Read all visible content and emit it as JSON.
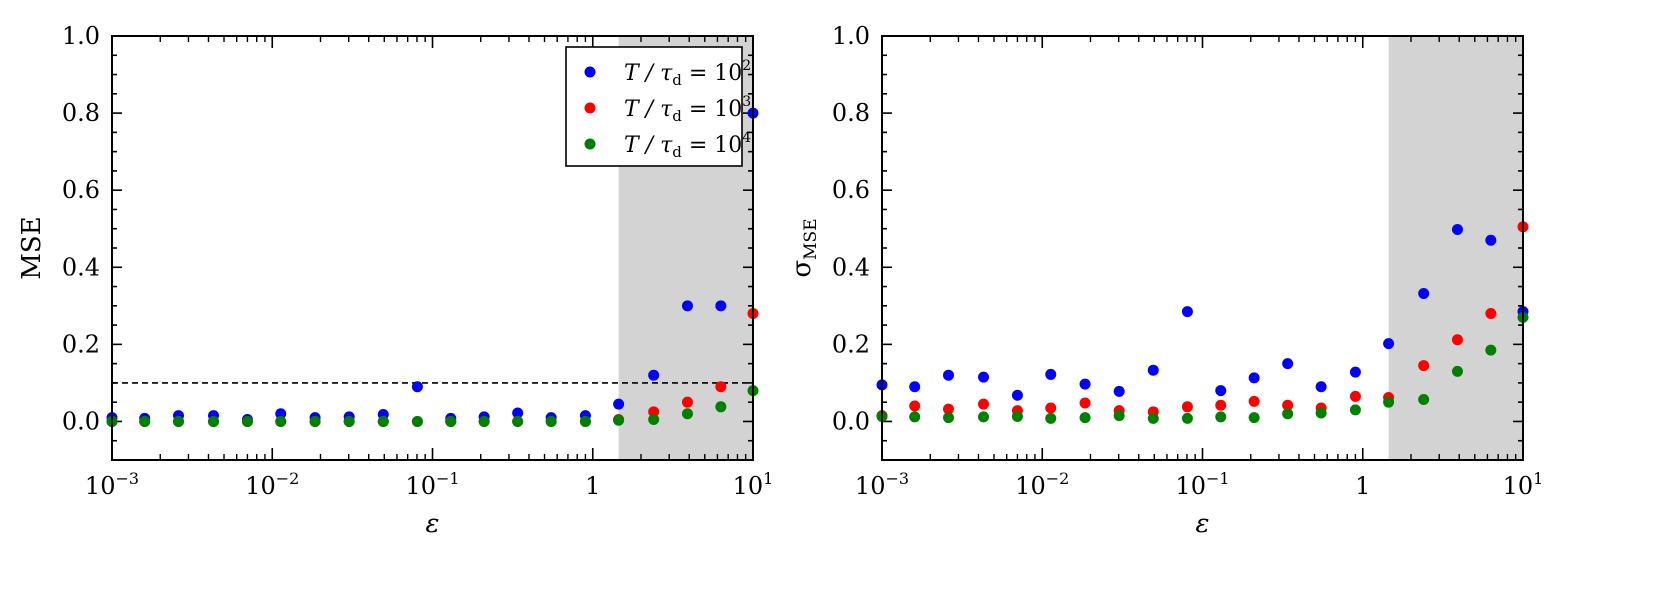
{
  "chart_data": [
    {
      "type": "scatter",
      "panel": "left",
      "xscale": "log",
      "xlim": [
        0.001,
        10
      ],
      "ylim": [
        -0.1,
        1.0
      ],
      "xlabel": "ε",
      "ylabel": "MSE",
      "yticks": [
        "0.0",
        "0.2",
        "0.4",
        "0.6",
        "0.8",
        "1.0"
      ],
      "xticks": [
        {
          "base": "10",
          "exp": "−3"
        },
        {
          "base": "10",
          "exp": "−2"
        },
        {
          "base": "10",
          "exp": "−1"
        },
        {
          "base": "1",
          "exp": ""
        },
        {
          "base": "10",
          "exp": "1"
        }
      ],
      "shaded_region": {
        "x_from": 1.45,
        "x_to": 10,
        "color": "#d3d3d3"
      },
      "reference_line": {
        "y": 0.1,
        "style": "dashed"
      },
      "legend": {
        "placement": "top-right",
        "entries": [
          {
            "prefix": "T / τ",
            "sub": "d",
            "eq": " = 10",
            "exp": "2",
            "color": "#0000ff"
          },
          {
            "prefix": "T / τ",
            "sub": "d",
            "eq": " = 10",
            "exp": "3",
            "color": "#ff0000"
          },
          {
            "prefix": "T / τ",
            "sub": "d",
            "eq": " = 10",
            "exp": "4",
            "color": "#008000"
          }
        ]
      },
      "x": [
        0.001,
        0.0016,
        0.0026,
        0.0043,
        0.007,
        0.0113,
        0.0185,
        0.0302,
        0.0493,
        0.0805,
        0.13,
        0.21,
        0.34,
        0.55,
        0.9,
        1.45,
        2.4,
        3.9,
        6.3,
        10
      ],
      "series": [
        {
          "name": "T/τd = 10^2",
          "color": "#0000ff",
          "values": [
            0.01,
            0.008,
            0.015,
            0.015,
            0.005,
            0.02,
            0.01,
            0.012,
            0.018,
            0.09,
            0.008,
            0.012,
            0.022,
            0.01,
            0.015,
            0.045,
            0.12,
            0.3,
            0.3,
            0.8
          ]
        },
        {
          "name": "T/τd = 10^3",
          "color": "#ff0000",
          "values": [
            0.0,
            0.0,
            0.0,
            0.0,
            0.0,
            0.0,
            0.0,
            0.0,
            0.0,
            0.0,
            0.0,
            0.0,
            0.0,
            0.0,
            0.0,
            0.005,
            0.025,
            0.05,
            0.09,
            0.28
          ]
        },
        {
          "name": "T/τd = 10^4",
          "color": "#008000",
          "values": [
            0.0,
            0.0,
            0.0,
            0.0,
            0.0,
            0.0,
            0.0,
            0.0,
            0.0,
            0.0,
            0.0,
            0.0,
            0.0,
            0.0,
            0.0,
            0.003,
            0.005,
            0.02,
            0.038,
            0.08
          ]
        }
      ]
    },
    {
      "type": "scatter",
      "panel": "right",
      "xscale": "log",
      "xlim": [
        0.001,
        10
      ],
      "ylim": [
        -0.1,
        1.0
      ],
      "xlabel": "ε",
      "ylabel": "σ",
      "ylabel_sub": "MSE",
      "yticks": [
        "0.0",
        "0.2",
        "0.4",
        "0.6",
        "0.8",
        "1.0"
      ],
      "xticks": [
        {
          "base": "10",
          "exp": "−3"
        },
        {
          "base": "10",
          "exp": "−2"
        },
        {
          "base": "10",
          "exp": "−1"
        },
        {
          "base": "1",
          "exp": ""
        },
        {
          "base": "10",
          "exp": "1"
        }
      ],
      "shaded_region": {
        "x_from": 1.45,
        "x_to": 10,
        "color": "#d3d3d3"
      },
      "x": [
        0.001,
        0.0016,
        0.0026,
        0.0043,
        0.007,
        0.0113,
        0.0185,
        0.0302,
        0.0493,
        0.0805,
        0.13,
        0.21,
        0.34,
        0.55,
        0.9,
        1.45,
        2.4,
        3.9,
        6.3,
        10
      ],
      "series": [
        {
          "name": "T/τd = 10^2",
          "color": "#0000ff",
          "values": [
            0.095,
            0.09,
            0.12,
            0.115,
            0.068,
            0.122,
            0.097,
            0.078,
            0.133,
            0.285,
            0.08,
            0.113,
            0.15,
            0.09,
            0.128,
            0.202,
            0.332,
            0.498,
            0.47,
            0.285
          ]
        },
        {
          "name": "T/τd = 10^3",
          "color": "#ff0000",
          "values": [
            0.015,
            0.04,
            0.032,
            0.045,
            0.028,
            0.035,
            0.048,
            0.028,
            0.025,
            0.038,
            0.042,
            0.052,
            0.042,
            0.035,
            0.065,
            0.062,
            0.145,
            0.212,
            0.28,
            0.505
          ]
        },
        {
          "name": "T/τd = 10^4",
          "color": "#008000",
          "values": [
            0.013,
            0.012,
            0.01,
            0.012,
            0.013,
            0.008,
            0.01,
            0.015,
            0.008,
            0.008,
            0.012,
            0.01,
            0.02,
            0.022,
            0.03,
            0.05,
            0.057,
            0.13,
            0.185,
            0.27
          ]
        }
      ]
    }
  ]
}
